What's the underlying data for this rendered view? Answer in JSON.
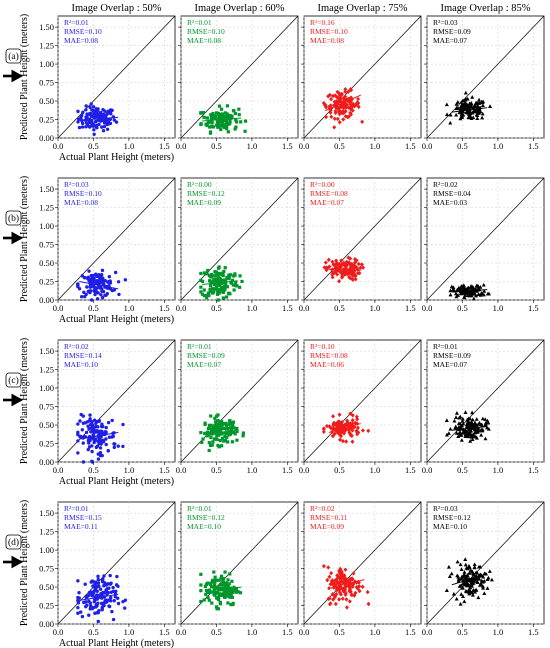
{
  "figure": {
    "columns": [
      "Image Overlap : 50%",
      "Image Overlap : 60%",
      "Image Overlap : 75%",
      "Image Overlap : 85%"
    ],
    "rows": [
      "(a)",
      "(b)",
      "(c)",
      "(d)"
    ],
    "highlighted_rows": [
      "(a)",
      "(b)",
      "(c)",
      "(d)"
    ],
    "xlabel": "Actual Plant Height (meters)",
    "ylabel": "Predicted Plant Height (meters)",
    "colors": [
      "#1f1fe6",
      "#00962b",
      "#f01c1c",
      "#000000"
    ],
    "markers": [
      "circle",
      "square",
      "diamond",
      "triangle"
    ],
    "xticks": [
      "0.0",
      "0.5",
      "1.0",
      "1.5"
    ],
    "yticks": [
      "0.00",
      "0.25",
      "0.50",
      "0.75",
      "1.00",
      "1.25",
      "1.50"
    ]
  },
  "chart_data": {
    "type": "scatter",
    "xlim": [
      0,
      1.65
    ],
    "ylim": [
      0,
      1.65
    ],
    "reference_line": "y = x",
    "grid": true,
    "panels": [
      {
        "row": "(a)",
        "col": "Image Overlap : 50%",
        "stats": [
          "R²=0.01",
          "RMSE=0.10",
          "MAE=0.08"
        ],
        "x_center": 0.55,
        "x_spread": 0.13,
        "y_center": 0.26,
        "y_spread": 0.08,
        "n": 120,
        "fit": {
          "x": [
            0.3,
            0.85
          ],
          "y": [
            0.24,
            0.28
          ]
        }
      },
      {
        "row": "(a)",
        "col": "Image Overlap : 60%",
        "stats": [
          "R²=0.01",
          "RMSE=0.10",
          "MAE=0.08"
        ],
        "x_center": 0.55,
        "x_spread": 0.13,
        "y_center": 0.25,
        "y_spread": 0.08,
        "n": 120,
        "fit": {
          "x": [
            0.3,
            0.85
          ],
          "y": [
            0.23,
            0.27
          ]
        }
      },
      {
        "row": "(a)",
        "col": "Image Overlap : 75%",
        "stats": [
          "R²=0.16",
          "RMSE=0.10",
          "MAE=0.08"
        ],
        "x_center": 0.55,
        "x_spread": 0.12,
        "y_center": 0.45,
        "y_spread": 0.09,
        "n": 120,
        "fit": {
          "x": [
            0.3,
            0.8
          ],
          "y": [
            0.37,
            0.58
          ]
        }
      },
      {
        "row": "(a)",
        "col": "Image Overlap : 85%",
        "stats": [
          "R²=0.03",
          "RMSE=0.09",
          "MAE=0.07"
        ],
        "x_center": 0.6,
        "x_spread": 0.12,
        "y_center": 0.38,
        "y_spread": 0.07,
        "n": 120,
        "fit": {
          "x": [
            0.35,
            0.85
          ],
          "y": [
            0.35,
            0.41
          ]
        }
      },
      {
        "row": "(b)",
        "col": "Image Overlap : 50%",
        "stats": [
          "R²=0.03",
          "RMSE=0.10",
          "MAE=0.08"
        ],
        "x_center": 0.55,
        "x_spread": 0.13,
        "y_center": 0.21,
        "y_spread": 0.08,
        "n": 120,
        "fit": {
          "x": [
            0.3,
            0.85
          ],
          "y": [
            0.25,
            0.15
          ]
        }
      },
      {
        "row": "(b)",
        "col": "Image Overlap : 60%",
        "stats": [
          "R²=0.00",
          "RMSE=0.12",
          "MAE=0.09"
        ],
        "x_center": 0.55,
        "x_spread": 0.13,
        "y_center": 0.24,
        "y_spread": 0.11,
        "n": 140,
        "fit": {
          "x": [
            0.3,
            0.8
          ],
          "y": [
            0.21,
            0.26
          ]
        }
      },
      {
        "row": "(b)",
        "col": "Image Overlap : 75%",
        "stats": [
          "R²=0.00",
          "RMSE=0.08",
          "MAE=0.07"
        ],
        "x_center": 0.55,
        "x_spread": 0.12,
        "y_center": 0.41,
        "y_spread": 0.07,
        "n": 120,
        "fit": {
          "x": [
            0.35,
            0.8
          ],
          "y": [
            0.41,
            0.4
          ]
        }
      },
      {
        "row": "(b)",
        "col": "Image Overlap : 85%",
        "stats": [
          "R²=0.02",
          "RMSE=0.04",
          "MAE=0.03"
        ],
        "x_center": 0.6,
        "x_spread": 0.12,
        "y_center": 0.12,
        "y_spread": 0.04,
        "n": 100,
        "fit": {
          "x": [
            0.35,
            0.85
          ],
          "y": [
            0.11,
            0.14
          ]
        }
      },
      {
        "row": "(c)",
        "col": "Image Overlap : 50%",
        "stats": [
          "R²=0.02",
          "RMSE=0.14",
          "MAE=0.10"
        ],
        "x_center": 0.55,
        "x_spread": 0.14,
        "y_center": 0.35,
        "y_spread": 0.13,
        "n": 130,
        "fit": {
          "x": [
            0.3,
            0.85
          ],
          "y": [
            0.31,
            0.4
          ]
        }
      },
      {
        "row": "(c)",
        "col": "Image Overlap : 60%",
        "stats": [
          "R²=0.01",
          "RMSE=0.09",
          "MAE=0.07"
        ],
        "x_center": 0.55,
        "x_spread": 0.12,
        "y_center": 0.42,
        "y_spread": 0.09,
        "n": 120,
        "fit": {
          "x": [
            0.35,
            0.8
          ],
          "y": [
            0.38,
            0.43
          ]
        }
      },
      {
        "row": "(c)",
        "col": "Image Overlap : 75%",
        "stats": [
          "R²=0.10",
          "RMSE=0.08",
          "MAE=0.06"
        ],
        "x_center": 0.55,
        "x_spread": 0.12,
        "y_center": 0.45,
        "y_spread": 0.07,
        "n": 120,
        "fit": {
          "x": [
            0.35,
            0.8
          ],
          "y": [
            0.4,
            0.52
          ]
        }
      },
      {
        "row": "(c)",
        "col": "Image Overlap : 85%",
        "stats": [
          "R²=0.01",
          "RMSE=0.09",
          "MAE=0.07"
        ],
        "x_center": 0.6,
        "x_spread": 0.12,
        "y_center": 0.46,
        "y_spread": 0.08,
        "n": 130,
        "fit": {
          "x": [
            0.35,
            0.85
          ],
          "y": [
            0.43,
            0.48
          ]
        }
      },
      {
        "row": "(d)",
        "col": "Image Overlap : 50%",
        "stats": [
          "R²=0.01",
          "RMSE=0.15",
          "MAE=0.11"
        ],
        "x_center": 0.55,
        "x_spread": 0.14,
        "y_center": 0.36,
        "y_spread": 0.14,
        "n": 140,
        "fit": {
          "x": [
            0.3,
            0.85
          ],
          "y": [
            0.32,
            0.4
          ]
        }
      },
      {
        "row": "(d)",
        "col": "Image Overlap : 60%",
        "stats": [
          "R²=0.01",
          "RMSE=0.12",
          "MAE=0.10"
        ],
        "x_center": 0.57,
        "x_spread": 0.12,
        "y_center": 0.47,
        "y_spread": 0.11,
        "n": 130,
        "fit": {
          "x": [
            0.35,
            0.85
          ],
          "y": [
            0.41,
            0.5
          ]
        }
      },
      {
        "row": "(d)",
        "col": "Image Overlap : 75%",
        "stats": [
          "R²=0.02",
          "RMSE=0.11",
          "MAE=0.09"
        ],
        "x_center": 0.57,
        "x_spread": 0.12,
        "y_center": 0.53,
        "y_spread": 0.12,
        "n": 130,
        "fit": {
          "x": [
            0.35,
            0.85
          ],
          "y": [
            0.48,
            0.6
          ]
        }
      },
      {
        "row": "(d)",
        "col": "Image Overlap : 85%",
        "stats": [
          "R²=0.03",
          "RMSE=0.12",
          "MAE=0.10"
        ],
        "x_center": 0.6,
        "x_spread": 0.12,
        "y_center": 0.6,
        "y_spread": 0.11,
        "n": 130,
        "fit": {
          "x": [
            0.35,
            0.85
          ],
          "y": [
            0.53,
            0.68
          ]
        }
      }
    ]
  }
}
